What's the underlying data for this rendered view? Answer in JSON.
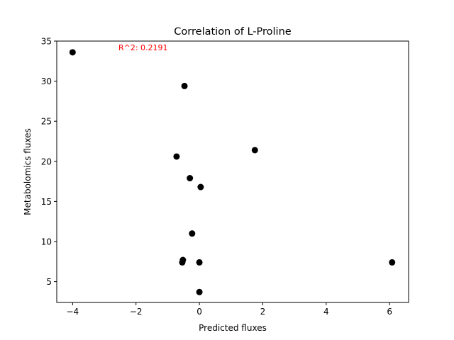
{
  "chart_data": {
    "type": "scatter",
    "title": "Correlation of L-Proline",
    "xlabel": "Predicted fluxes",
    "ylabel": "Metabolomics fluxes",
    "annotation": "R^2: 0.2191",
    "annotation_color": "#ff0000",
    "marker_color": "#000000",
    "xlim": [
      -4.5,
      6.6
    ],
    "ylim": [
      2.4,
      35
    ],
    "xticks": [
      -4,
      -2,
      0,
      2,
      4,
      6
    ],
    "xtick_labels": [
      "−4",
      "−2",
      "0",
      "2",
      "4",
      "6"
    ],
    "yticks": [
      5,
      10,
      15,
      20,
      25,
      30,
      35
    ],
    "ytick_labels": [
      "5",
      "10",
      "15",
      "20",
      "25",
      "30",
      "35"
    ],
    "grid": false,
    "points": [
      {
        "x": -4.0,
        "y": 33.6
      },
      {
        "x": -0.47,
        "y": 29.4
      },
      {
        "x": 1.75,
        "y": 21.4
      },
      {
        "x": -0.72,
        "y": 20.6
      },
      {
        "x": -0.3,
        "y": 17.9
      },
      {
        "x": 0.04,
        "y": 16.8
      },
      {
        "x": -0.23,
        "y": 11.0
      },
      {
        "x": -0.52,
        "y": 7.7
      },
      {
        "x": -0.54,
        "y": 7.4
      },
      {
        "x": 0.0,
        "y": 7.4
      },
      {
        "x": 6.08,
        "y": 7.4
      },
      {
        "x": 0.0,
        "y": 3.7
      }
    ]
  }
}
